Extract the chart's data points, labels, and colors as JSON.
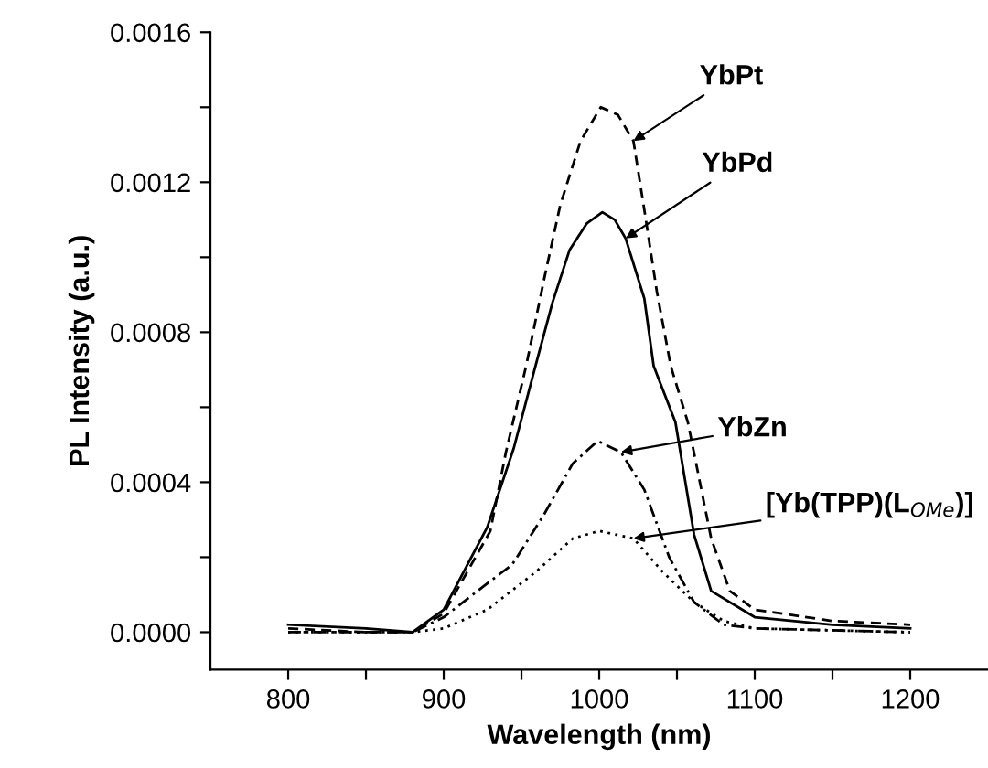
{
  "chart_data": {
    "type": "line",
    "xlabel": "Wavelength (nm)",
    "ylabel": "PL Intensity (a.u.)",
    "xlim": [
      750,
      1250
    ],
    "ylim": [
      -0.0001,
      0.0016
    ],
    "xticks": [
      800,
      {
        "value": 850,
        "label": null
      },
      900,
      {
        "value": 950,
        "label": null
      },
      1000,
      {
        "value": 1050,
        "label": null
      },
      1100,
      {
        "value": 1150,
        "label": null
      },
      1200
    ],
    "yticks": [
      {
        "value": 0,
        "label": "0.0000"
      },
      {
        "value": 0.0002,
        "label": null
      },
      {
        "value": 0.0004,
        "label": "0.0004"
      },
      {
        "value": 0.0006,
        "label": null
      },
      {
        "value": 0.0008,
        "label": "0.0008"
      },
      {
        "value": 0.001,
        "label": null
      },
      {
        "value": 0.0012,
        "label": "0.0012"
      },
      {
        "value": 0.0014,
        "label": null
      },
      {
        "value": 0.0016,
        "label": "0.0016"
      }
    ],
    "grid": false,
    "legend": false,
    "marker": "none",
    "series": [
      {
        "color": "#000000",
        "line_style": "dashed",
        "x": [
          800,
          850,
          880,
          900,
          930,
          940,
          953,
          965,
          975,
          988,
          1001,
          1012,
          1022,
          1030,
          1037,
          1046,
          1057,
          1072,
          1084,
          1100,
          1150,
          1200
        ],
        "values": [
          1e-05,
          0.0,
          0.0,
          5e-05,
          0.00027,
          0.00048,
          0.00071,
          0.00095,
          0.00114,
          0.00131,
          0.0014,
          0.00138,
          0.00131,
          0.0011,
          0.00091,
          0.00071,
          0.00056,
          0.00025,
          0.00011,
          6e-05,
          3e-05,
          2e-05
        ]
      },
      {
        "color": "#000000",
        "line_style": "solid",
        "x": [
          800,
          850,
          880,
          900,
          928,
          945,
          959,
          970,
          981,
          992,
          1002,
          1010,
          1017,
          1029,
          1035,
          1049,
          1061,
          1072,
          1100,
          1150,
          1200
        ],
        "values": [
          2e-05,
          1e-05,
          0.0,
          6e-05,
          0.00028,
          0.00049,
          0.00071,
          0.00088,
          0.00102,
          0.00109,
          0.00112,
          0.0011,
          0.00105,
          0.00089,
          0.00071,
          0.00056,
          0.00026,
          0.00011,
          4e-05,
          2e-05,
          1e-05
        ]
      },
      {
        "color": "#000000",
        "line_style": "dashdot",
        "x": [
          800,
          850,
          880,
          900,
          928,
          944,
          964,
          983,
          999,
          1014,
          1029,
          1045,
          1061,
          1080,
          1100,
          1200
        ],
        "values": [
          0.0,
          0.0,
          0.0,
          4e-05,
          0.00013,
          0.00018,
          0.00031,
          0.00045,
          0.00051,
          0.00048,
          0.00038,
          0.0002,
          8e-05,
          2e-05,
          1e-05,
          0.0
        ]
      },
      {
        "color": "#000000",
        "line_style": "dotted",
        "x": [
          800,
          850,
          880,
          900,
          928,
          959,
          983,
          1000,
          1022,
          1041,
          1061,
          1080,
          1100,
          1200
        ],
        "values": [
          0.0,
          0.0,
          0.0,
          1e-05,
          6e-05,
          0.00016,
          0.00025,
          0.00027,
          0.00025,
          0.00016,
          8e-05,
          3e-05,
          1e-05,
          0.0
        ]
      }
    ],
    "annotations": [
      {
        "text": "YbPt",
        "x": 1022,
        "y": 0.00131
      },
      {
        "text": "YbPd",
        "x": 1017,
        "y": 0.00105
      },
      {
        "text": "YbZn",
        "x": 1014,
        "y": 0.00048
      },
      {
        "text": "[Yb(TPP)(L$_{OMe}$)]",
        "x": 1022,
        "y": 0.00025
      }
    ]
  }
}
